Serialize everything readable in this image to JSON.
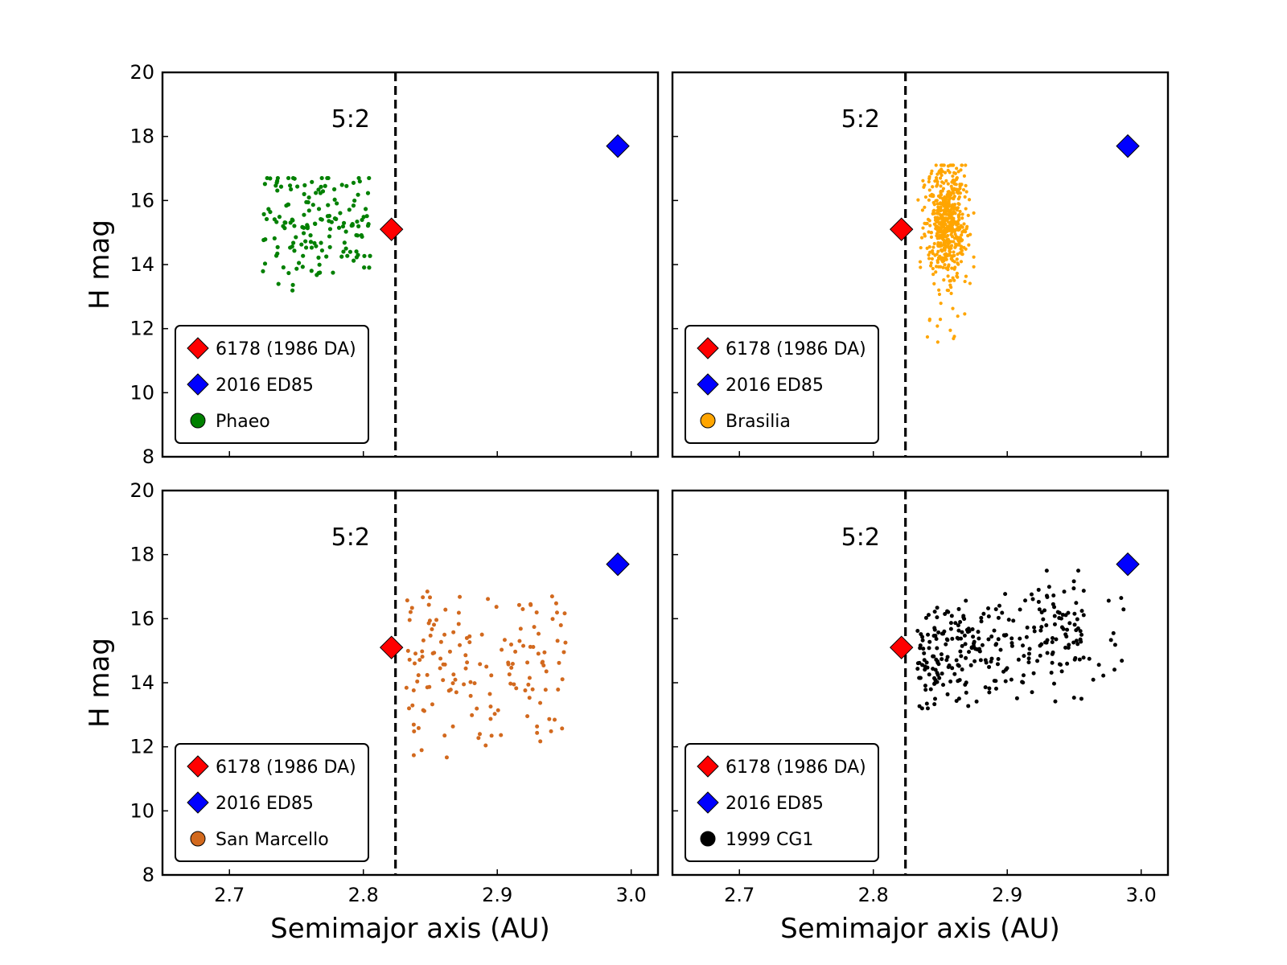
{
  "chart_data": [
    {
      "type": "scatter",
      "panel": "top-left",
      "xlabel": "",
      "ylabel": "H mag",
      "xlim": [
        2.65,
        3.02
      ],
      "ylim": [
        8,
        20
      ],
      "xticks": [
        "2.7",
        "2.8",
        "2.9",
        "3.0"
      ],
      "yticks": [
        "8",
        "10",
        "12",
        "14",
        "16",
        "18",
        "20"
      ],
      "resonance_label": "5:2",
      "resonance_a": 2.824,
      "legend_position": "lower-left",
      "targets": [
        {
          "name": "6178 (1986 DA)",
          "a": 2.821,
          "H": 15.1,
          "color": "#ff0000"
        },
        {
          "name": "2016 ED85",
          "a": 2.99,
          "H": 17.7,
          "color": "#0000ff"
        }
      ],
      "family": {
        "name": "Phaeo",
        "color": "#008000",
        "a_range": [
          2.725,
          2.805
        ],
        "H_range": [
          12.9,
          16.7
        ],
        "count": 160
      }
    },
    {
      "type": "scatter",
      "panel": "top-right",
      "xlabel": "",
      "ylabel": "",
      "xlim": [
        2.65,
        3.02
      ],
      "ylim": [
        8,
        20
      ],
      "xticks": [
        "2.7",
        "2.8",
        "2.9",
        "3.0"
      ],
      "yticks": [
        "8",
        "10",
        "12",
        "14",
        "16",
        "18",
        "20"
      ],
      "resonance_label": "5:2",
      "resonance_a": 2.824,
      "legend_position": "lower-left",
      "targets": [
        {
          "name": "6178 (1986 DA)",
          "a": 2.821,
          "H": 15.1,
          "color": "#ff0000"
        },
        {
          "name": "2016 ED85",
          "a": 2.99,
          "H": 17.7,
          "color": "#0000ff"
        }
      ],
      "family": {
        "name": "Brasilia",
        "color": "#ffa500",
        "a_range": [
          2.833,
          2.875
        ],
        "H_range": [
          11.2,
          17.1
        ],
        "count": 550
      }
    },
    {
      "type": "scatter",
      "panel": "bottom-left",
      "xlabel": "Semimajor axis (AU)",
      "ylabel": "H mag",
      "xlim": [
        2.65,
        3.02
      ],
      "ylim": [
        8,
        20
      ],
      "xticks": [
        "2.7",
        "2.8",
        "2.9",
        "3.0"
      ],
      "yticks": [
        "8",
        "10",
        "12",
        "14",
        "16",
        "18",
        "20"
      ],
      "resonance_label": "5:2",
      "resonance_a": 2.824,
      "legend_position": "lower-left",
      "targets": [
        {
          "name": "6178 (1986 DA)",
          "a": 2.821,
          "H": 15.1,
          "color": "#ff0000"
        },
        {
          "name": "2016 ED85",
          "a": 2.99,
          "H": 17.7,
          "color": "#0000ff"
        }
      ],
      "family": {
        "name": "San Marcello",
        "color": "#d2691e",
        "a_range": [
          2.832,
          2.953
        ],
        "H_range": [
          11.6,
          16.9
        ],
        "count": 150
      }
    },
    {
      "type": "scatter",
      "panel": "bottom-right",
      "xlabel": "Semimajor axis (AU)",
      "ylabel": "",
      "xlim": [
        2.65,
        3.02
      ],
      "ylim": [
        8,
        20
      ],
      "xticks": [
        "2.7",
        "2.8",
        "2.9",
        "3.0"
      ],
      "yticks": [
        "8",
        "10",
        "12",
        "14",
        "16",
        "18",
        "20"
      ],
      "resonance_label": "5:2",
      "resonance_a": 2.824,
      "legend_position": "lower-left",
      "targets": [
        {
          "name": "6178 (1986 DA)",
          "a": 2.821,
          "H": 15.1,
          "color": "#ff0000"
        },
        {
          "name": "2016 ED85",
          "a": 2.99,
          "H": 17.7,
          "color": "#0000ff"
        }
      ],
      "family": {
        "name": "1999 CG1",
        "color": "#000000",
        "a_range": [
          2.833,
          2.988
        ],
        "H_range": [
          13.2,
          17.5
        ],
        "count": 300
      }
    }
  ]
}
